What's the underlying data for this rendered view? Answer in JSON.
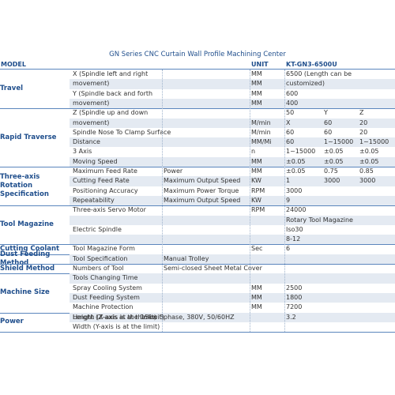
{
  "title": "GN Series CNC Curtain Wall Profile Machining Center",
  "header": [
    "MODEL",
    "UNIT",
    "KT-GN3-6500U"
  ],
  "groups": [
    {
      "category": "Travel",
      "rows": [
        [
          "X (Spindle left and right",
          null,
          "MM",
          "6500 (Length can be",
          null,
          null
        ],
        [
          "movement)",
          null,
          "MM",
          "customized)",
          null,
          null
        ],
        [
          "Y (Spindle back and forth",
          null,
          "MM",
          "600",
          null,
          null
        ],
        [
          "movement)",
          null,
          "MM",
          "400",
          null,
          null
        ]
      ]
    },
    {
      "category": "Rapid Traverse",
      "rows": [
        [
          "Z (Spindle up and down",
          null,
          null,
          "50",
          "Y",
          "Z"
        ],
        [
          "movement)",
          null,
          "M/min",
          "X",
          "60",
          "20"
        ],
        [
          "Spindle Nose To Clamp Surface",
          null,
          "M/min",
          "60",
          "60",
          "20"
        ],
        [
          "Distance",
          null,
          "MM/Mi",
          "60",
          "1~15000",
          "1~15000"
        ],
        [
          "3 Axis",
          null,
          "n",
          "1~15000",
          "±0.05",
          "±0.05"
        ],
        [
          "Moving Speed",
          null,
          "MM",
          "±0.05",
          "±0.05",
          "±0.05"
        ]
      ]
    },
    {
      "category": "Three-axis Rotation Specification",
      "rows": [
        [
          "Maximum Feed Rate",
          "Power",
          "MM",
          "±0.05",
          "0.75",
          "0.85"
        ],
        [
          "Cutting Feed Rate",
          "Maximum Output Speed",
          "KW",
          "1",
          "3000",
          "3000"
        ],
        [
          "Positioning Accuracy",
          "Maximum Power Torque",
          "RPM",
          "3000",
          null,
          null
        ],
        [
          "Repeatability",
          "Maximum Output Speed",
          "KW",
          "9",
          null,
          null
        ]
      ]
    },
    {
      "category": "Tool Magazine",
      "rows": [
        [
          "Three-axis Servo Motor",
          null,
          "RPM",
          "24000",
          null,
          null
        ],
        [
          null,
          null,
          null,
          "Rotary Tool Magazine",
          null,
          null
        ],
        [
          "Electric Spindle",
          null,
          null,
          "Iso30",
          null,
          null
        ],
        [
          null,
          null,
          null,
          "8-12",
          null,
          null
        ]
      ]
    },
    {
      "category": "Cutting Coolant",
      "rows": [
        [
          "Tool Magazine Form",
          null,
          "Sec",
          "6",
          null,
          null
        ]
      ]
    },
    {
      "category": "Dust Feeding Method",
      "rows": [
        [
          "Tool Specification",
          "Manual Trolley",
          null,
          null,
          null,
          null
        ]
      ]
    },
    {
      "category": "Shield Method",
      "rows": [
        [
          "Numbers of Tool",
          "Semi-closed Sheet Metal Cover",
          null,
          null,
          null,
          null
        ]
      ]
    },
    {
      "category": "Machine Size",
      "rows": [
        [
          "Tools Changing Time",
          null,
          null,
          null,
          null,
          null
        ],
        [
          "Spray Cooling System",
          null,
          "MM",
          "2500",
          null,
          null
        ],
        [
          "Dust Feeding System",
          null,
          "MM",
          "1800",
          null,
          null
        ],
        [
          "Machine Protection",
          null,
          "MM",
          "7200",
          null,
          null
        ]
      ]
    },
    {
      "category": "Power",
      "rows": [
        [
          "Height (Z-axis at the limit)",
          "15kw 3phase, 380V, 50/60HZ",
          null,
          "3.2",
          null,
          null
        ],
        [
          "Width (Y-axis is at the limit)",
          null,
          null,
          null,
          null,
          null
        ]
      ]
    }
  ],
  "overlay": "Length (X-axis is at the limit)"
}
